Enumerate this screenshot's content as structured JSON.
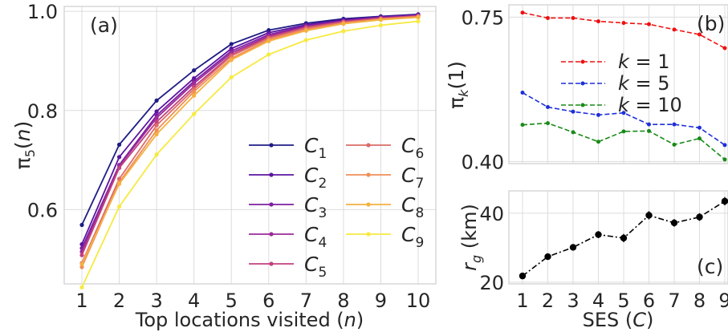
{
  "chart_data": [
    {
      "panel": "(a)",
      "type": "line",
      "xlabel": "Top locations visited (n)",
      "ylabel": "π5(n)",
      "x": [
        1,
        2,
        3,
        4,
        5,
        6,
        7,
        8,
        9,
        10
      ],
      "xticks": [
        "1",
        "2",
        "3",
        "4",
        "5",
        "6",
        "7",
        "8",
        "9",
        "10"
      ],
      "ylim": [
        0.45,
        1.01
      ],
      "yticks": [
        "0.6",
        "0.8",
        "1.0"
      ],
      "grid": true,
      "legend_position": "lower-right, 2 columns",
      "series": [
        {
          "name": "C1",
          "color": "#1f1c84",
          "values": [
            0.569,
            0.731,
            0.82,
            0.881,
            0.934,
            0.962,
            0.976,
            0.985,
            0.99,
            0.994
          ]
        },
        {
          "name": "C2",
          "color": "#5b14a0",
          "values": [
            0.53,
            0.706,
            0.798,
            0.865,
            0.925,
            0.957,
            0.973,
            0.983,
            0.989,
            0.993
          ]
        },
        {
          "name": "C3",
          "color": "#7e1fa1",
          "values": [
            0.522,
            0.69,
            0.79,
            0.859,
            0.92,
            0.953,
            0.971,
            0.981,
            0.988,
            0.992
          ]
        },
        {
          "name": "C4",
          "color": "#9d2a98",
          "values": [
            0.515,
            0.688,
            0.785,
            0.855,
            0.916,
            0.95,
            0.969,
            0.98,
            0.987,
            0.991
          ]
        },
        {
          "name": "C5",
          "color": "#c2417f",
          "values": [
            0.508,
            0.684,
            0.777,
            0.848,
            0.912,
            0.948,
            0.968,
            0.979,
            0.986,
            0.991
          ]
        },
        {
          "name": "C6",
          "color": "#dc6b68",
          "values": [
            0.492,
            0.662,
            0.77,
            0.843,
            0.91,
            0.946,
            0.966,
            0.978,
            0.985,
            0.99
          ]
        },
        {
          "name": "C7",
          "color": "#f08e57",
          "values": [
            0.484,
            0.655,
            0.76,
            0.838,
            0.905,
            0.943,
            0.963,
            0.976,
            0.984,
            0.989
          ]
        },
        {
          "name": "C8",
          "color": "#f5b03f",
          "values": [
            0.49,
            0.652,
            0.752,
            0.83,
            0.902,
            0.94,
            0.961,
            0.975,
            0.983,
            0.988
          ]
        },
        {
          "name": "C9",
          "color": "#f7e941",
          "values": [
            0.443,
            0.606,
            0.711,
            0.793,
            0.867,
            0.913,
            0.942,
            0.96,
            0.972,
            0.98
          ]
        }
      ]
    },
    {
      "panel": "(b)",
      "type": "line",
      "xlabel": "",
      "ylabel": "πk(1)",
      "x": [
        1,
        2,
        3,
        4,
        5,
        6,
        7,
        8,
        9
      ],
      "ylim": [
        0.395,
        0.78
      ],
      "yticks": [
        "0.40",
        "0.75"
      ],
      "grid": true,
      "legend_position": "center",
      "series": [
        {
          "name": "k = 1",
          "color": "#ee1111",
          "values": [
            0.761,
            0.748,
            0.748,
            0.74,
            0.736,
            0.733,
            0.72,
            0.708,
            0.675
          ]
        },
        {
          "name": "k = 5",
          "color": "#1e2fd8",
          "values": [
            0.567,
            0.532,
            0.521,
            0.513,
            0.518,
            0.49,
            0.49,
            0.482,
            0.44
          ]
        },
        {
          "name": "k = 10",
          "color": "#188a18",
          "values": [
            0.489,
            0.493,
            0.471,
            0.448,
            0.473,
            0.474,
            0.441,
            0.456,
            0.405
          ]
        }
      ]
    },
    {
      "panel": "(c)",
      "type": "line",
      "xlabel": "SES (C)",
      "ylabel": "rg (km)",
      "x": [
        1,
        2,
        3,
        4,
        5,
        6,
        7,
        8,
        9
      ],
      "xticks": [
        "1",
        "2",
        "3",
        "4",
        "5",
        "6",
        "7",
        "8",
        "9"
      ],
      "ylim": [
        19.5,
        46.5
      ],
      "yticks": [
        "20",
        "40"
      ],
      "grid": true,
      "series": [
        {
          "name": "",
          "color": "#000000",
          "values": [
            21.8,
            27.4,
            30.1,
            33.8,
            32.8,
            39.4,
            37.2,
            38.9,
            43.5
          ],
          "err": [
            0.9,
            0.9,
            0.9,
            1.0,
            1.2,
            1.2,
            1.1,
            1.1,
            1.2
          ]
        }
      ]
    }
  ]
}
